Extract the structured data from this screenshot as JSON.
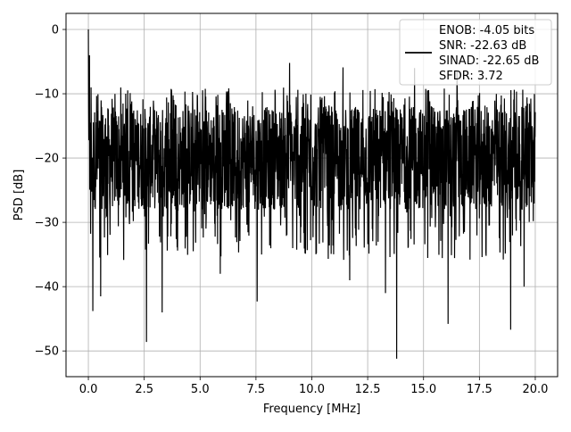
{
  "chart_data": {
    "type": "line",
    "title": "",
    "xlabel": "Frequency [MHz]",
    "ylabel": "PSD [dB]",
    "xlim": [
      -1.0,
      21.0
    ],
    "ylim": [
      -54.0,
      2.5
    ],
    "x_ticks": [
      0.0,
      2.5,
      5.0,
      7.5,
      10.0,
      12.5,
      15.0,
      17.5,
      20.0
    ],
    "x_tick_labels": [
      "0.0",
      "2.5",
      "5.0",
      "7.5",
      "10.0",
      "12.5",
      "15.0",
      "17.5",
      "20.0"
    ],
    "y_ticks": [
      0,
      -10,
      -20,
      -30,
      -40,
      -50
    ],
    "y_tick_labels": [
      "0",
      "−10",
      "−20",
      "−30",
      "−40",
      "−50"
    ],
    "grid": true,
    "legend_position": "upper right",
    "series": [
      {
        "color": "#000000",
        "legend_lines": [
          "ENOB: -4.05 bits",
          "SNR: -22.63 dB",
          "SINAD: -22.65 dB",
          "SFDR: 3.72"
        ],
        "x_range": [
          0.0,
          20.0
        ],
        "noise_band_db": [
          -28.0,
          -12.0
        ],
        "peaks": [
          {
            "x": 0.0,
            "y": 0.0
          },
          {
            "x": 0.05,
            "y": -4.0
          },
          {
            "x": 0.12,
            "y": -9.0
          },
          {
            "x": 9.0,
            "y": -5.2
          },
          {
            "x": 11.4,
            "y": -5.9
          },
          {
            "x": 14.6,
            "y": -6.0
          },
          {
            "x": 16.5,
            "y": -6.5
          }
        ],
        "dips": [
          {
            "x": 0.2,
            "y": -43.8
          },
          {
            "x": 0.55,
            "y": -41.5
          },
          {
            "x": 2.6,
            "y": -48.6
          },
          {
            "x": 3.3,
            "y": -44.0
          },
          {
            "x": 5.9,
            "y": -38.0
          },
          {
            "x": 7.55,
            "y": -42.3
          },
          {
            "x": 11.7,
            "y": -39.0
          },
          {
            "x": 13.3,
            "y": -41.0
          },
          {
            "x": 13.8,
            "y": -51.2
          },
          {
            "x": 16.1,
            "y": -45.8
          },
          {
            "x": 18.9,
            "y": -46.7
          },
          {
            "x": 19.5,
            "y": -40.0
          }
        ]
      }
    ]
  }
}
